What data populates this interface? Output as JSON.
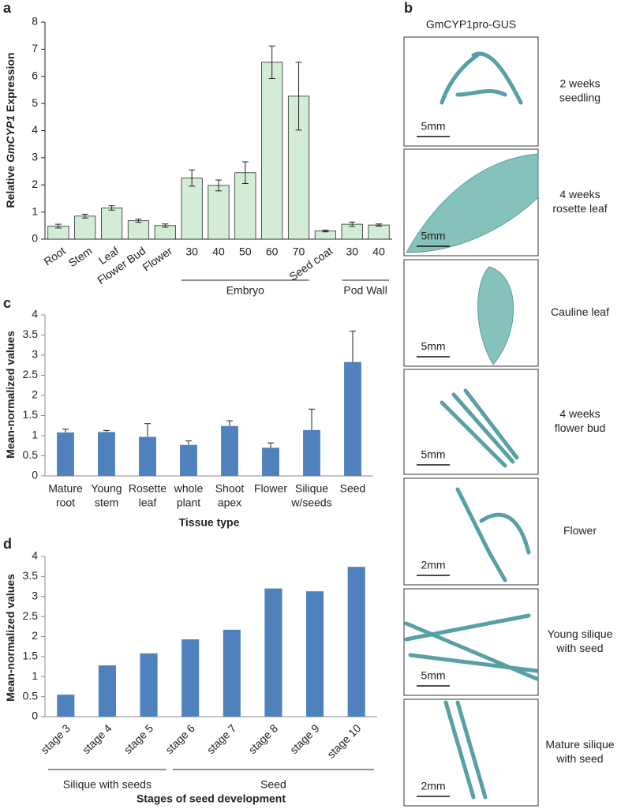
{
  "panel_labels": [
    "a",
    "b",
    "c",
    "d"
  ],
  "chart_data": [
    {
      "type": "bar",
      "y_label": [
        "Relative",
        "GmCYP1",
        "Expression"
      ],
      "categories": [
        "Root",
        "Stem",
        "Leaf",
        "Flower Bud",
        "Flower",
        "30",
        "40",
        "50",
        "60",
        "70",
        "Seed coat",
        "30",
        "40"
      ],
      "values": [
        0.48,
        0.85,
        1.15,
        0.68,
        0.5,
        2.25,
        1.98,
        2.45,
        6.52,
        5.27,
        0.3,
        0.55,
        0.52
      ],
      "errors": [
        0.07,
        0.07,
        0.08,
        0.06,
        0.06,
        0.3,
        0.2,
        0.4,
        0.6,
        1.25,
        0.03,
        0.08,
        0.04
      ],
      "group_labels": [
        "Embryo",
        "Pod Wall"
      ],
      "color": "#d3ecd5",
      "edgecolor": "#2b2b2b",
      "ylim": [
        0,
        8
      ],
      "yticks": [
        0,
        1,
        2,
        3,
        4,
        5,
        6,
        7,
        8
      ]
    },
    {
      "type": "bar",
      "y_label": [
        "Mean-normalized values"
      ],
      "x_label": "Tissue type",
      "categories": [
        [
          "Mature",
          "root"
        ],
        [
          "Young",
          "stem"
        ],
        [
          "Rosette",
          "leaf"
        ],
        [
          "whole",
          "plant"
        ],
        [
          "Shoot",
          "apex"
        ],
        [
          "Flower"
        ],
        [
          "Silique",
          "w/seeds"
        ],
        [
          "Seed"
        ]
      ],
      "values": [
        1.08,
        1.09,
        0.97,
        0.77,
        1.24,
        0.7,
        1.14,
        2.83
      ],
      "errors": [
        0.08,
        0.04,
        0.33,
        0.1,
        0.13,
        0.12,
        0.52,
        0.77
      ],
      "color": "#4f81bd",
      "ylim": [
        0,
        4
      ],
      "yticks": [
        0,
        0.5,
        1,
        1.5,
        2,
        2.5,
        3,
        3.5,
        4
      ]
    },
    {
      "type": "bar",
      "y_label": [
        "Mean-normalized values"
      ],
      "x_label": "Stages of seed development",
      "categories": [
        "stage 3",
        "stage 4",
        "stage 5",
        "stage 6",
        "stage 7",
        "stage 8",
        "stage 9",
        "stage 10"
      ],
      "values": [
        0.55,
        1.28,
        1.58,
        1.93,
        2.17,
        3.2,
        3.13,
        3.74
      ],
      "group_labels": [
        "Silique with seeds",
        "Seed"
      ],
      "color": "#4f81bd",
      "ylim": [
        0,
        4
      ],
      "yticks": [
        0,
        0.5,
        1,
        1.5,
        2,
        2.5,
        3,
        3.5,
        4
      ]
    }
  ],
  "image_panel": {
    "title": "GmCYP1pro-GUS",
    "images": [
      {
        "scale": "5mm",
        "caption": [
          "2 weeks",
          "seedling"
        ]
      },
      {
        "scale": "5mm",
        "caption": [
          "4 weeks",
          "rosette leaf"
        ]
      },
      {
        "scale": "5mm",
        "caption": [
          "Cauline leaf"
        ]
      },
      {
        "scale": "5mm",
        "caption": [
          "4 weeks",
          "flower bud"
        ]
      },
      {
        "scale": "2mm",
        "caption": [
          "Flower"
        ]
      },
      {
        "scale": "5mm",
        "caption": [
          "Young silique",
          "with seed"
        ]
      },
      {
        "scale": "2mm",
        "caption": [
          "Mature silique",
          "with seed"
        ]
      }
    ]
  }
}
